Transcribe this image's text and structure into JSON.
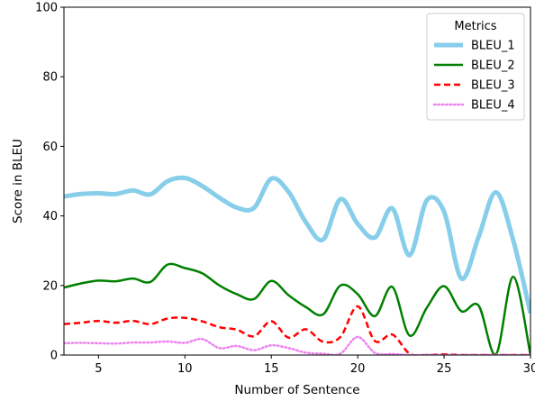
{
  "chart_data": {
    "type": "line",
    "xlabel": "Number of Sentence",
    "ylabel": "Score in BLEU",
    "xlim": [
      3,
      30
    ],
    "ylim": [
      0,
      100
    ],
    "x_ticks": [
      5,
      10,
      15,
      20,
      25,
      30
    ],
    "y_ticks": [
      0,
      20,
      40,
      60,
      80,
      100
    ],
    "grid": false,
    "legend": {
      "title": "Metrics",
      "placement": "top-right"
    },
    "x": [
      3,
      4,
      5,
      6,
      7,
      8,
      9,
      10,
      11,
      12,
      13,
      14,
      15,
      16,
      17,
      18,
      19,
      20,
      21,
      22,
      23,
      24,
      25,
      26,
      27,
      28,
      29,
      30
    ],
    "series": [
      {
        "name": "BLEU_1",
        "color": "#87ceeb",
        "style": "solid",
        "width": "thick",
        "values": [
          45.6,
          46.3,
          46.5,
          46.3,
          47.3,
          46.2,
          50.0,
          50.9,
          48.6,
          45.2,
          42.4,
          42.3,
          50.7,
          46.9,
          38.2,
          33.2,
          44.8,
          37.7,
          33.8,
          42.2,
          28.7,
          44.5,
          41.2,
          22.0,
          34.0,
          46.8,
          33.0,
          12.0
        ]
      },
      {
        "name": "BLEU_2",
        "color": "#008000",
        "style": "solid",
        "width": "medium",
        "values": [
          19.4,
          20.6,
          21.4,
          21.2,
          22.0,
          21.0,
          26.0,
          25.0,
          23.5,
          20.0,
          17.5,
          16.1,
          21.3,
          17.2,
          13.8,
          11.7,
          20.0,
          17.5,
          11.2,
          19.6,
          5.6,
          13.6,
          19.8,
          12.6,
          14.2,
          0.2,
          22.5,
          0.0
        ]
      },
      {
        "name": "BLEU_3",
        "color": "#ff0000",
        "style": "dashed",
        "width": "medium",
        "values": [
          8.9,
          9.3,
          9.8,
          9.3,
          9.8,
          8.9,
          10.5,
          10.7,
          9.7,
          8.0,
          7.3,
          5.4,
          9.7,
          5.0,
          7.4,
          3.8,
          5.2,
          14.0,
          4.0,
          5.9,
          0.4,
          0.0,
          0.2,
          0.0,
          0.0,
          0.0,
          0.0,
          0.0
        ]
      },
      {
        "name": "BLEU_4",
        "color": "#ee82ee",
        "style": "dotted",
        "width": "medium",
        "values": [
          3.4,
          3.5,
          3.4,
          3.3,
          3.6,
          3.6,
          3.9,
          3.5,
          4.6,
          2.0,
          2.6,
          1.4,
          2.8,
          2.0,
          0.7,
          0.4,
          0.4,
          5.2,
          0.6,
          0.3,
          0.0,
          0.0,
          0.0,
          0.0,
          0.0,
          0.0,
          0.0,
          0.0
        ]
      }
    ]
  }
}
